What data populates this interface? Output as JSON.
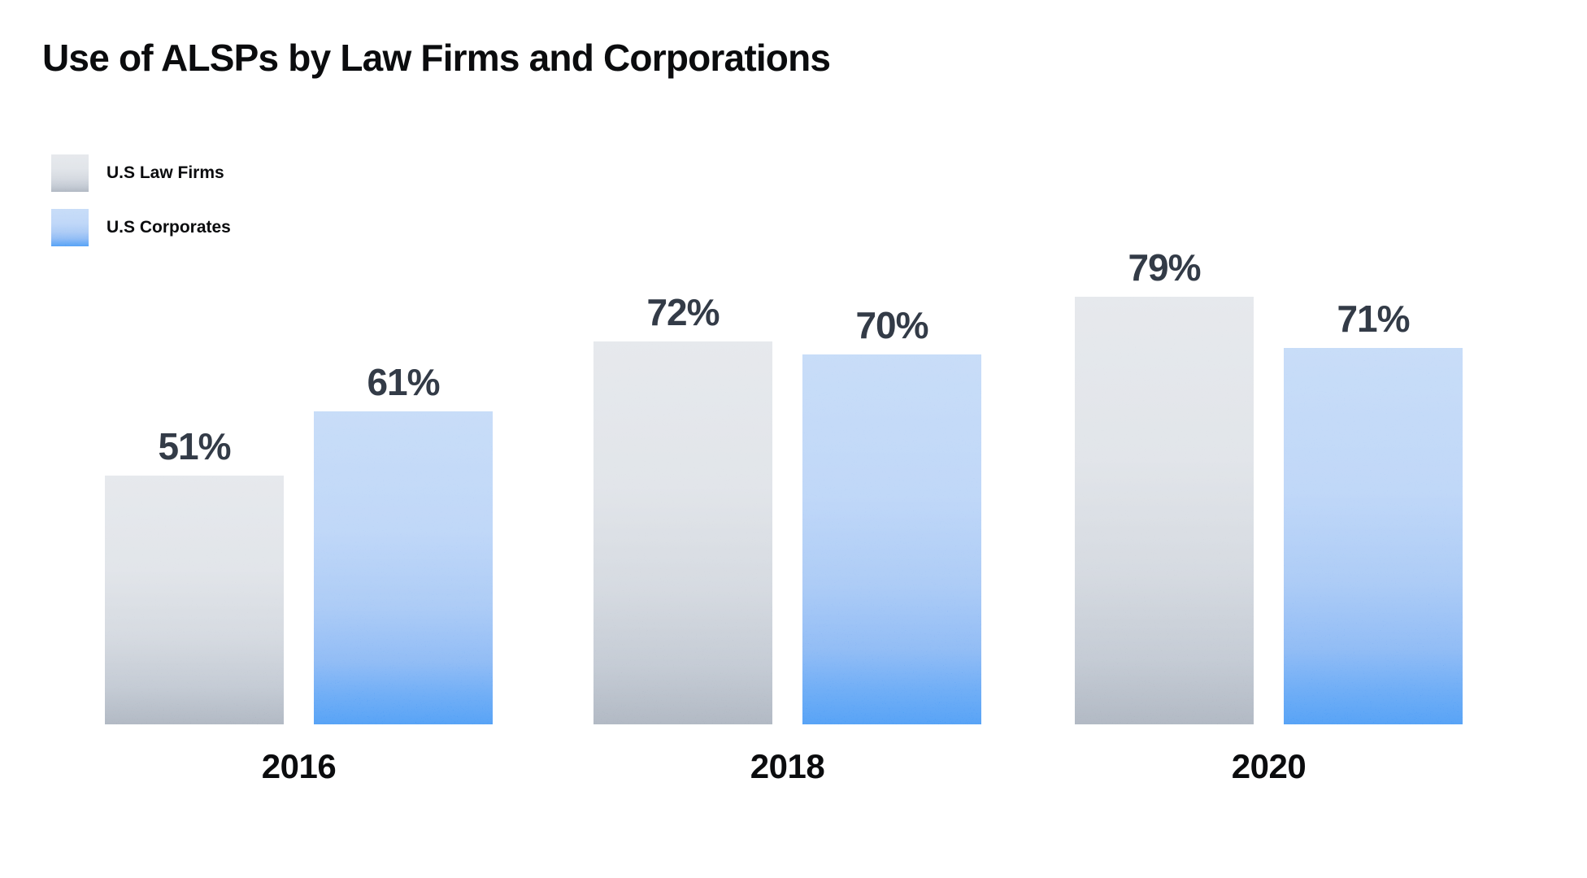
{
  "title": "Use of ALSPs by Law Firms and Corporations",
  "chart_data": {
    "type": "bar",
    "title": "Use of ALSPs by Law Firms and Corporations",
    "categories": [
      "2016",
      "2018",
      "2020"
    ],
    "series": [
      {
        "name": "U.S Law Firms",
        "values": [
          51,
          72,
          79
        ],
        "value_labels": [
          "51%",
          "72%",
          "79%"
        ],
        "gradient": [
          {
            "c": "#dbdfe5",
            "p": 0
          },
          {
            "c": "#d4d9e0",
            "p": 38
          },
          {
            "c": "#c2c9d3",
            "p": 65
          },
          {
            "c": "#a9b3c1",
            "p": 85
          },
          {
            "c": "#8d98a8",
            "p": 100
          }
        ]
      },
      {
        "name": "U.S Corporates",
        "values": [
          61,
          70,
          71
        ],
        "value_labels": [
          "61%",
          "70%",
          "71%"
        ],
        "gradient": [
          {
            "c": "#aecdf6",
            "p": 0
          },
          {
            "c": "#a2c5f5",
            "p": 38
          },
          {
            "c": "#86b4f3",
            "p": 62
          },
          {
            "c": "#5d9df1",
            "p": 80
          },
          {
            "c": "#2a87f3",
            "p": 91
          },
          {
            "c": "#0777f3",
            "p": 100
          }
        ]
      }
    ],
    "value_suffix": "%",
    "ylim": [
      0,
      100
    ],
    "grid": false,
    "legend_position": "top-left",
    "colors": {
      "text": "#0b0c0e",
      "value_label": "#333b47",
      "law_firms_top": "#dbdfe5",
      "law_firms_bottom": "#8d98a8",
      "corporates_top": "#aecdf6",
      "corporates_bottom": "#0777f3",
      "background": "#ffffff"
    }
  }
}
